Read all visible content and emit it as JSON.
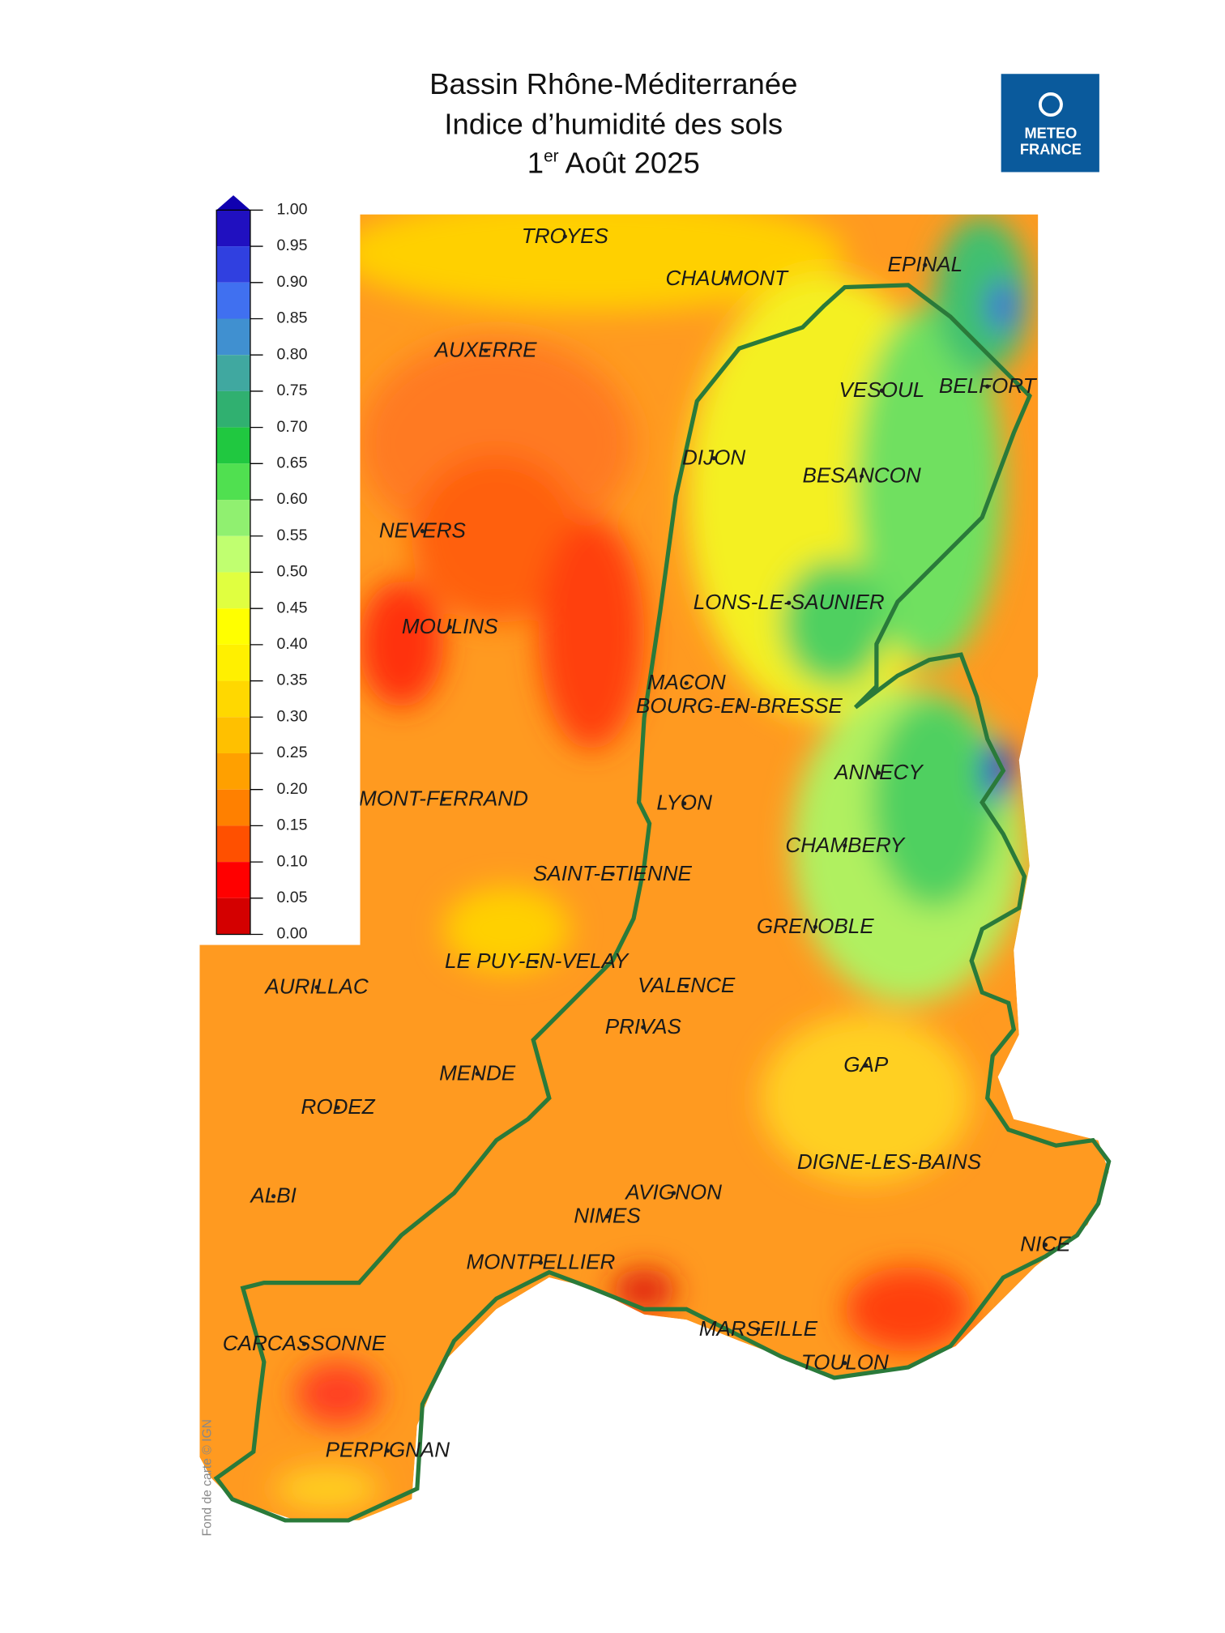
{
  "header": {
    "title_line1": "Bassin Rhône-Méditerranée",
    "title_line2": "Indice d’humidité des sols",
    "date_day": "1",
    "date_sup": "er",
    "date_rest": "Août 2025"
  },
  "logo": {
    "line1": "METEO",
    "line2": "FRANCE"
  },
  "colorbar": {
    "ticks": [
      {
        "value": 1.0,
        "label": "1.00"
      },
      {
        "value": 0.95,
        "label": "0.95"
      },
      {
        "value": 0.9,
        "label": "0.90"
      },
      {
        "value": 0.85,
        "label": "0.85"
      },
      {
        "value": 0.8,
        "label": "0.80"
      },
      {
        "value": 0.75,
        "label": "0.75"
      },
      {
        "value": 0.7,
        "label": "0.70"
      },
      {
        "value": 0.65,
        "label": "0.65"
      },
      {
        "value": 0.6,
        "label": "0.60"
      },
      {
        "value": 0.55,
        "label": "0.55"
      },
      {
        "value": 0.5,
        "label": "0.50"
      },
      {
        "value": 0.45,
        "label": "0.45"
      },
      {
        "value": 0.4,
        "label": "0.40"
      },
      {
        "value": 0.35,
        "label": "0.35"
      },
      {
        "value": 0.3,
        "label": "0.30"
      },
      {
        "value": 0.25,
        "label": "0.25"
      },
      {
        "value": 0.2,
        "label": "0.20"
      },
      {
        "value": 0.15,
        "label": "0.15"
      },
      {
        "value": 0.1,
        "label": "0.10"
      },
      {
        "value": 0.05,
        "label": "0.05"
      },
      {
        "value": 0.0,
        "label": "0.00"
      }
    ],
    "colors": [
      "#2010c0",
      "#3040e0",
      "#4070f0",
      "#4090d0",
      "#40a8a0",
      "#30b070",
      "#20c840",
      "#50e050",
      "#90f070",
      "#c0ff70",
      "#e0ff40",
      "#ffff00",
      "#fff000",
      "#ffd800",
      "#ffc000",
      "#ffa000",
      "#ff8000",
      "#ff5000",
      "#ff0000",
      "#d40000"
    ],
    "extend_color": "#1000b0"
  },
  "map": {
    "cities": [
      "TROYES",
      "CHAUMONT",
      "EPINAL",
      "AUXERRE",
      "VESOUL",
      "BELFORT",
      "DIJON",
      "BESANCON",
      "NEVERS",
      "LONS-LE-SAUNIER",
      "MOULINS",
      "MACON",
      "BOURG-EN-BRESSE",
      "ANNECY",
      "MONT-FERRAND",
      "LYON",
      "CHAMBERY",
      "SAINT-ETIENNE",
      "GRENOBLE",
      "LE PUY-EN-VELAY",
      "AURILLAC",
      "VALENCE",
      "PRIVAS",
      "MENDE",
      "GAP",
      "RODEZ",
      "DIGNE-LES-BAINS",
      "ALBI",
      "AVIGNON",
      "NIMES",
      "NICE",
      "MONTPELLIER",
      "MARSEILLE",
      "TOULON",
      "CARCASSONNE",
      "PERPIGNAN"
    ],
    "credit": "Fond de carte © IGN"
  }
}
